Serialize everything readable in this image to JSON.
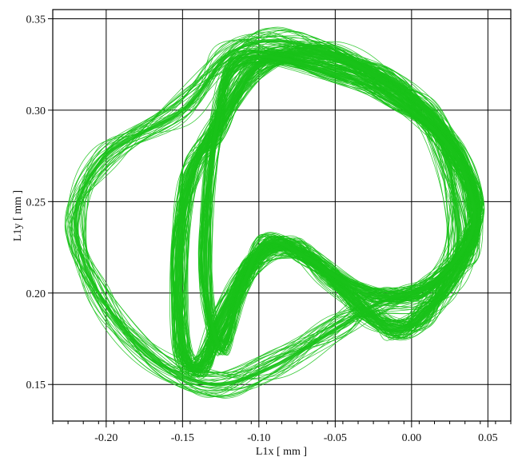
{
  "chart_data": {
    "type": "line",
    "title": "",
    "xlabel": "L1x [ mm ]",
    "ylabel": "L1y [ mm ]",
    "xlim": [
      -0.235,
      0.065
    ],
    "ylim": [
      0.13,
      0.355
    ],
    "x_ticks": [
      -0.2,
      -0.15,
      -0.1,
      -0.05,
      0.0,
      0.05
    ],
    "x_tick_labels": [
      "-0.20",
      "-0.15",
      "-0.10",
      "-0.05",
      "0.00",
      "0.05"
    ],
    "y_ticks": [
      0.15,
      0.2,
      0.25,
      0.3,
      0.35
    ],
    "y_tick_labels": [
      "0.15",
      "0.20",
      "0.25",
      "0.30",
      "0.35"
    ],
    "grid": true,
    "legend": "none",
    "line_color": "#19c219",
    "series": [
      {
        "x": [
          -0.128,
          -0.1,
          -0.06,
          -0.02,
          0.01,
          0.03,
          0.042,
          0.038,
          0.024,
          0.008,
          -0.01,
          -0.03,
          -0.055,
          -0.08,
          -0.105,
          -0.125,
          -0.138,
          -0.15,
          -0.152,
          -0.145,
          -0.128
        ],
        "y": [
          0.29,
          0.325,
          0.33,
          0.318,
          0.3,
          0.275,
          0.25,
          0.225,
          0.205,
          0.188,
          0.18,
          0.19,
          0.21,
          0.225,
          0.215,
          0.185,
          0.16,
          0.17,
          0.22,
          0.265,
          0.29
        ]
      },
      {
        "x": [
          -0.15,
          -0.2,
          -0.22,
          -0.205,
          -0.17,
          -0.13,
          -0.09,
          -0.05,
          -0.02,
          0.01,
          0.03,
          0.02,
          -0.01,
          -0.05,
          -0.09,
          -0.12,
          -0.15
        ],
        "y": [
          0.3,
          0.275,
          0.24,
          0.2,
          0.165,
          0.15,
          0.16,
          0.18,
          0.195,
          0.2,
          0.225,
          0.28,
          0.31,
          0.33,
          0.338,
          0.33,
          0.3
        ]
      },
      {
        "x": [
          -0.11,
          -0.05,
          -0.01,
          0.025,
          0.04,
          0.038,
          0.02,
          0.0,
          -0.03,
          -0.07,
          -0.095,
          -0.11,
          -0.125,
          -0.135,
          -0.128,
          -0.11
        ],
        "y": [
          0.328,
          0.32,
          0.305,
          0.28,
          0.25,
          0.23,
          0.21,
          0.2,
          0.2,
          0.22,
          0.228,
          0.205,
          0.17,
          0.215,
          0.29,
          0.328
        ]
      }
    ]
  }
}
